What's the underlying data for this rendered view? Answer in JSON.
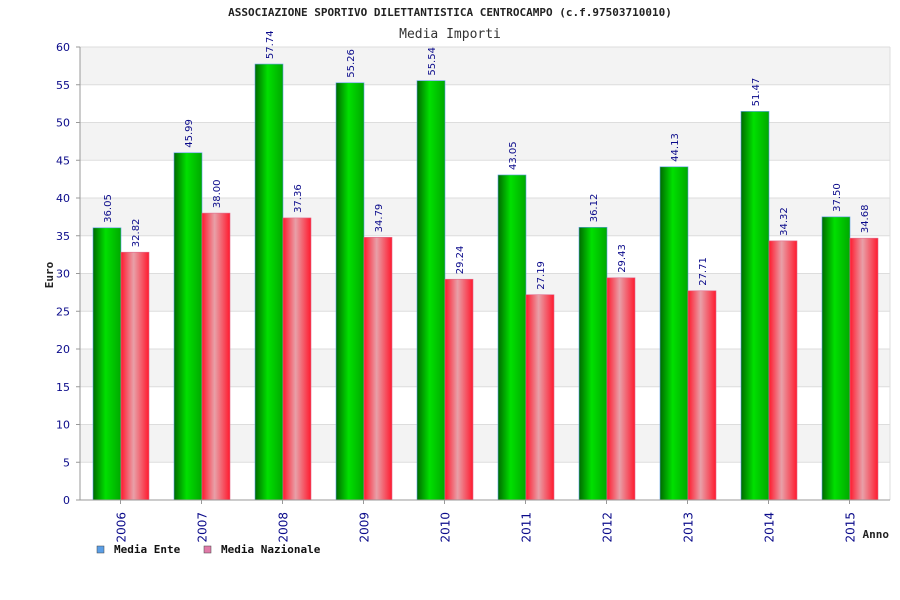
{
  "chart_data": {
    "type": "bar",
    "title": "ASSOCIAZIONE SPORTIVO DILETTANTISTICA CENTROCAMPO (c.f.97503710010)",
    "subtitle": "Media Importi",
    "xlabel": "Anno",
    "ylabel": "Euro",
    "ylim": [
      0,
      60
    ],
    "yticks": [
      "0",
      "5",
      "10",
      "15",
      "20",
      "25",
      "30",
      "35",
      "40",
      "45",
      "50",
      "55",
      "60"
    ],
    "categories": [
      "2006",
      "2007",
      "2008",
      "2009",
      "2010",
      "2011",
      "2012",
      "2013",
      "2014",
      "2015"
    ],
    "series": [
      {
        "name": "Media Ente",
        "color": "#00b000",
        "legend_color": "#5a9ee6",
        "values": [
          36.05,
          45.99,
          57.74,
          55.26,
          55.54,
          43.05,
          36.12,
          44.13,
          51.47,
          37.5
        ],
        "labels": [
          "36.05",
          "45.99",
          "57.74",
          "55.26",
          "55.54",
          "43.05",
          "36.12",
          "44.13",
          "51.47",
          "37.50"
        ]
      },
      {
        "name": "Media Nazionale",
        "color": "#ff1a2e",
        "legend_color": "#e07aa8",
        "values": [
          32.82,
          38.0,
          37.36,
          34.79,
          29.24,
          27.19,
          29.43,
          27.71,
          34.32,
          34.68
        ],
        "labels": [
          "32.82",
          "38.00",
          "37.36",
          "34.79",
          "29.24",
          "27.19",
          "29.43",
          "27.71",
          "34.32",
          "34.68"
        ]
      }
    ],
    "grid": true,
    "legend_position": "bottom-left"
  }
}
